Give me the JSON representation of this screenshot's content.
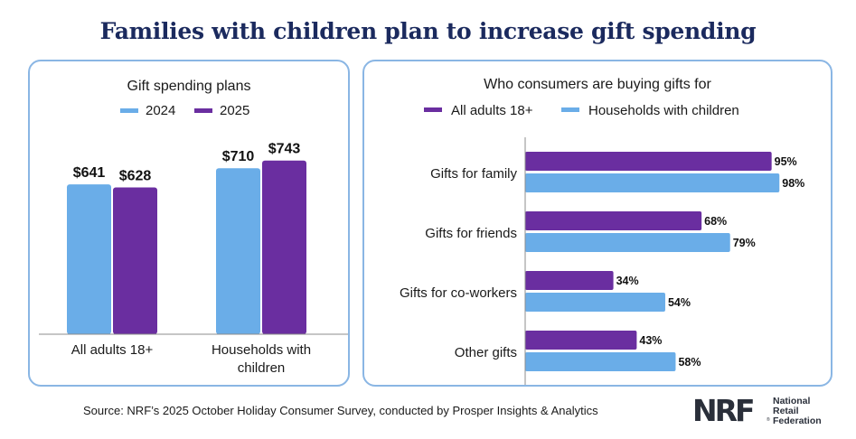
{
  "title": "Families with children plan to increase gift spending",
  "colors": {
    "light": "#6aade8",
    "dark": "#6a2ea0",
    "border": "#8ab6e4",
    "title": "#1b2a5e"
  },
  "source": "Source: NRF’s 2025 October Holiday Consumer Survey, conducted by Prosper Insights & Analytics",
  "logo": {
    "mark": "NRF",
    "lines": [
      "National",
      "Retail",
      "Federation"
    ]
  },
  "chart_data": [
    {
      "type": "bar",
      "title": "Gift spending plans",
      "categories": [
        "All adults 18+",
        "Households with children"
      ],
      "category_lines": [
        [
          "All adults 18+"
        ],
        [
          "Households with",
          "children"
        ]
      ],
      "series": [
        {
          "name": "2024",
          "values": [
            641,
            710
          ],
          "labels": [
            "$641",
            "$710"
          ],
          "color": "#6aade8"
        },
        {
          "name": "2025",
          "values": [
            628,
            743
          ],
          "labels": [
            "$628",
            "$743"
          ],
          "color": "#6a2ea0"
        }
      ],
      "ylim": [
        0,
        850
      ],
      "grid": false,
      "legend": "top"
    },
    {
      "type": "bar",
      "orientation": "horizontal",
      "title": "Who consumers are buying gifts for",
      "categories": [
        "Gifts for family",
        "Gifts for friends",
        "Gifts for co-workers",
        "Other gifts"
      ],
      "series": [
        {
          "name": "All adults 18+",
          "values": [
            95,
            68,
            34,
            43
          ],
          "labels": [
            "95%",
            "68%",
            "34%",
            "43%"
          ],
          "color": "#6a2ea0"
        },
        {
          "name": "Households with children",
          "values": [
            98,
            79,
            54,
            58
          ],
          "labels": [
            "98%",
            "79%",
            "54%",
            "58%"
          ],
          "color": "#6aade8"
        }
      ],
      "xlim": [
        0,
        100
      ],
      "grid": false,
      "legend": "top"
    }
  ]
}
